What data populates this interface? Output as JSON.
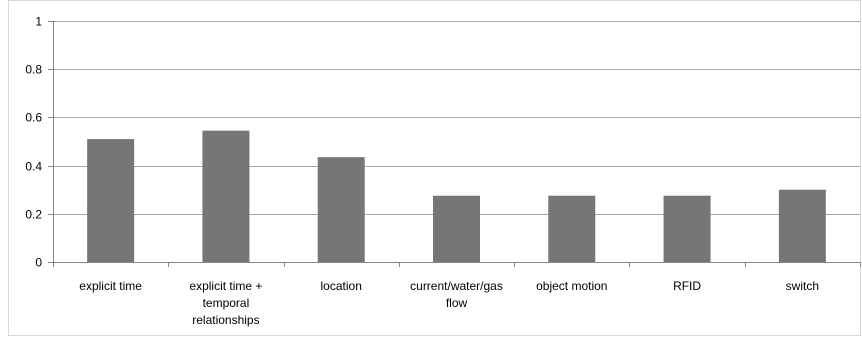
{
  "chart_data": {
    "type": "bar",
    "categories": [
      [
        "explicit time"
      ],
      [
        "explicit time +",
        "temporal",
        "relationships"
      ],
      [
        "location"
      ],
      [
        "current/water/gas",
        "flow"
      ],
      [
        "object motion"
      ],
      [
        "RFID"
      ],
      [
        "switch"
      ]
    ],
    "values": [
      0.51,
      0.545,
      0.435,
      0.275,
      0.275,
      0.275,
      0.3
    ],
    "ylim": [
      0,
      1
    ],
    "yticks": [
      "0",
      "0.2",
      "0.4",
      "0.6",
      "0.8",
      "1"
    ],
    "ytick_values": [
      0,
      0.2,
      0.4,
      0.6,
      0.8,
      1
    ],
    "grid": true,
    "legend": "none",
    "title": "",
    "xlabel": "",
    "ylabel": "",
    "bar_color": "#767676",
    "grid_color": "#a6a6a6",
    "axis_color": "#868686"
  }
}
